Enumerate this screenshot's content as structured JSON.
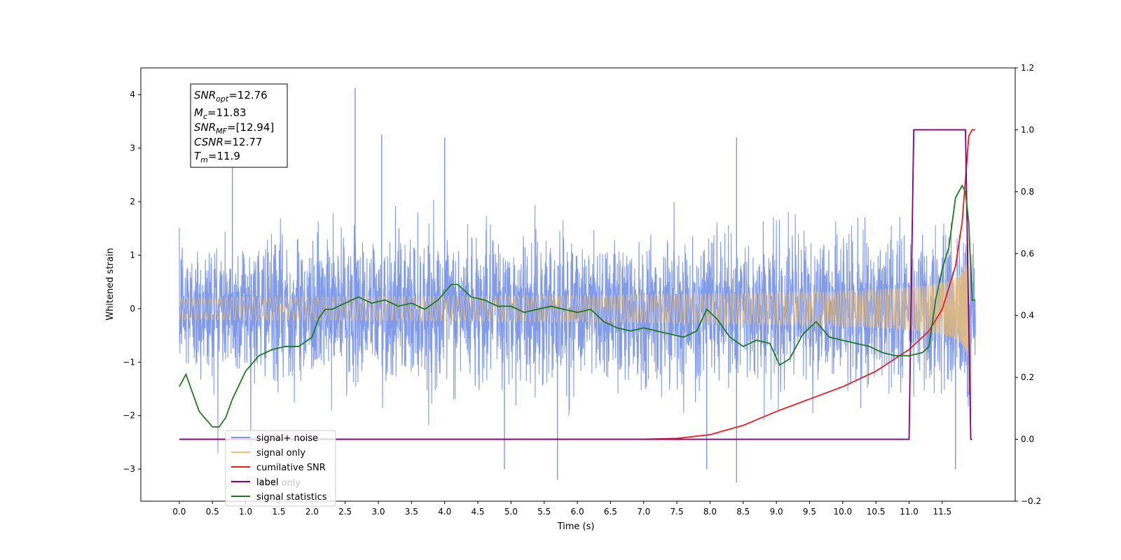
{
  "chart_data": {
    "type": "line",
    "xlabel": "Time (s)",
    "ylabel": "Whitened strain",
    "xlim": [
      -0.58,
      12.6
    ],
    "ylim": [
      -3.6,
      4.5
    ],
    "y2lim": [
      -0.2,
      1.2
    ],
    "x_ticks": [
      "0.0",
      "0.5",
      "1.0",
      "1.5",
      "2.0",
      "2.5",
      "3.0",
      "3.5",
      "4.0",
      "4.5",
      "5.0",
      "5.5",
      "6.0",
      "6.5",
      "7.0",
      "7.5",
      "8.0",
      "8.5",
      "9.0",
      "9.5",
      "10.0",
      "10.5",
      "11.0",
      "11.5"
    ],
    "y_ticks": [
      "4",
      "3",
      "2",
      "1",
      "0",
      "−1",
      "−2",
      "−3"
    ],
    "y2_ticks": [
      "1.2",
      "1.0",
      "0.8",
      "0.6",
      "0.4",
      "0.2",
      "0.0",
      "−0.2"
    ],
    "legend": {
      "placement": "lower-left",
      "entries": [
        {
          "label": "signal+ noise",
          "color": "#7b96e8"
        },
        {
          "label": "signal only",
          "color": "#f5c26b"
        },
        {
          "label": "cumilative SNR",
          "color": "#ee1c1c"
        },
        {
          "label": "label",
          "color": "#800080"
        },
        {
          "label": "signal statistics",
          "color": "#1f7a1f"
        }
      ],
      "hidden_text": "label only"
    },
    "info_box": {
      "snr_opt_base": "SNR",
      "snr_opt_sub": "opt",
      "snr_opt_val": "=12.76",
      "mc_base": "M",
      "mc_sub": "c",
      "mc_val": "=11.83",
      "snr_mf_base": "SNR",
      "snr_mf_sub": "MF",
      "snr_mf_val": "=[12.94]",
      "csnr_base": "CSNR",
      "csnr_val": "=12.77",
      "tm_base": "T",
      "tm_sub": "m",
      "tm_val": "=11.9"
    },
    "series": [
      {
        "name": "signal+ noise",
        "axis": "left",
        "color": "#7b96e8",
        "t_range": [
          0,
          12.0
        ],
        "noise_std": 0.62,
        "spikes": [
          [
            2.65,
            4.12
          ],
          [
            3.05,
            3.25
          ],
          [
            4.0,
            3.2
          ],
          [
            8.4,
            3.2
          ],
          [
            0.8,
            2.8
          ],
          [
            5.7,
            -3.2
          ],
          [
            8.4,
            -3.25
          ],
          [
            4.9,
            -3.0
          ],
          [
            7.95,
            -3.0
          ],
          [
            11.7,
            -3.0
          ]
        ]
      },
      {
        "name": "signal only",
        "axis": "left",
        "color": "#f5c26b",
        "t_range": [
          0,
          12.0
        ],
        "merger_time": 11.9,
        "peak_amplitude": 1.55
      },
      {
        "name": "cumilative SNR",
        "axis": "right",
        "color": "#ee1c1c",
        "x": [
          0,
          7.0,
          7.5,
          8.0,
          8.5,
          9.0,
          9.5,
          10.0,
          10.5,
          11.0,
          11.3,
          11.5,
          11.7,
          11.8,
          11.9,
          11.95,
          12.0
        ],
        "values": [
          0.0,
          0.0,
          0.003,
          0.015,
          0.045,
          0.09,
          0.13,
          0.17,
          0.22,
          0.29,
          0.35,
          0.42,
          0.56,
          0.7,
          0.98,
          1.0,
          1.0
        ]
      },
      {
        "name": "label",
        "axis": "right",
        "color": "#800080",
        "x": [
          0,
          11.0,
          11.07,
          11.85,
          11.93,
          11.95
        ],
        "values": [
          0.0,
          0.0,
          1.0,
          1.0,
          0.0,
          0.0
        ]
      },
      {
        "name": "signal statistics",
        "axis": "right",
        "color": "#1f7a1f",
        "x": [
          0,
          0.1,
          0.3,
          0.5,
          0.6,
          0.7,
          0.8,
          1.0,
          1.2,
          1.4,
          1.6,
          1.8,
          2.0,
          2.1,
          2.2,
          2.3,
          2.5,
          2.7,
          2.9,
          3.1,
          3.3,
          3.5,
          3.7,
          3.9,
          4.1,
          4.2,
          4.4,
          4.6,
          4.8,
          5.0,
          5.2,
          5.4,
          5.6,
          5.8,
          6.0,
          6.2,
          6.4,
          6.6,
          6.8,
          7.0,
          7.2,
          7.4,
          7.6,
          7.8,
          7.95,
          8.1,
          8.3,
          8.5,
          8.7,
          8.9,
          9.05,
          9.2,
          9.4,
          9.6,
          9.8,
          10.0,
          10.2,
          10.4,
          10.6,
          10.8,
          11.0,
          11.2,
          11.3,
          11.4,
          11.5,
          11.6,
          11.7,
          11.8,
          11.85,
          11.9,
          11.95,
          12.0
        ],
        "values": [
          0.17,
          0.21,
          0.09,
          0.04,
          0.04,
          0.07,
          0.13,
          0.22,
          0.27,
          0.29,
          0.3,
          0.3,
          0.33,
          0.39,
          0.42,
          0.42,
          0.44,
          0.46,
          0.44,
          0.45,
          0.43,
          0.44,
          0.42,
          0.45,
          0.5,
          0.5,
          0.46,
          0.45,
          0.43,
          0.43,
          0.41,
          0.42,
          0.43,
          0.42,
          0.41,
          0.42,
          0.38,
          0.36,
          0.35,
          0.36,
          0.35,
          0.34,
          0.33,
          0.35,
          0.42,
          0.39,
          0.33,
          0.3,
          0.32,
          0.31,
          0.24,
          0.26,
          0.34,
          0.38,
          0.33,
          0.32,
          0.31,
          0.3,
          0.28,
          0.27,
          0.27,
          0.28,
          0.3,
          0.45,
          0.55,
          0.62,
          0.78,
          0.82,
          0.8,
          0.7,
          0.45,
          0.45
        ]
      }
    ]
  }
}
